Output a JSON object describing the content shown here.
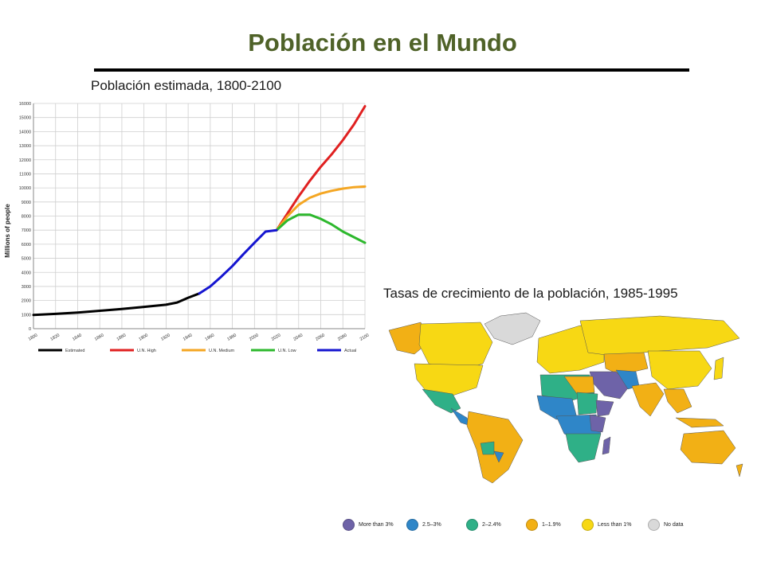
{
  "slide": {
    "title": "Población en el Mundo",
    "chart_caption": "Población estimada, 1800-2100",
    "map_caption": "Tasas de crecimiento de la población, 1985-1995",
    "title_color": "#4f6228"
  },
  "chart_data": {
    "type": "line",
    "title": "",
    "xlabel": "",
    "ylabel": "Millions of people",
    "xlim": [
      1800,
      2100
    ],
    "ylim": [
      0,
      16000
    ],
    "x_ticks": [
      1800,
      1820,
      1840,
      1860,
      1880,
      1900,
      1920,
      1940,
      1960,
      1980,
      2000,
      2020,
      2040,
      2060,
      2080,
      2100
    ],
    "y_ticks": [
      0,
      1000,
      2000,
      3000,
      4000,
      5000,
      6000,
      7000,
      8000,
      9000,
      10000,
      11000,
      12000,
      13000,
      14000,
      15000,
      16000
    ],
    "grid": true,
    "legend_position": "bottom",
    "series": [
      {
        "name": "Estimated",
        "color": "#000000",
        "x": [
          1800,
          1820,
          1840,
          1860,
          1880,
          1900,
          1920,
          1930,
          1940,
          1950
        ],
        "y": [
          980,
          1050,
          1150,
          1270,
          1400,
          1550,
          1700,
          1860,
          2200,
          2500
        ]
      },
      {
        "name": "U.N. High",
        "color": "#e02020",
        "x": [
          2020,
          2030,
          2040,
          2050,
          2060,
          2070,
          2080,
          2090,
          2100
        ],
        "y": [
          7000,
          8200,
          9400,
          10500,
          11500,
          12400,
          13400,
          14500,
          15800
        ]
      },
      {
        "name": "U.N. Medium",
        "color": "#f4a623",
        "x": [
          2020,
          2030,
          2040,
          2050,
          2060,
          2070,
          2080,
          2090,
          2100
        ],
        "y": [
          7000,
          8000,
          8800,
          9300,
          9600,
          9800,
          9950,
          10050,
          10100
        ]
      },
      {
        "name": "U.N. Low",
        "color": "#2db82d",
        "x": [
          2020,
          2030,
          2040,
          2050,
          2060,
          2070,
          2080,
          2090,
          2100
        ],
        "y": [
          7000,
          7700,
          8100,
          8100,
          7800,
          7400,
          6900,
          6500,
          6100
        ]
      },
      {
        "name": "Actual",
        "color": "#1515d0",
        "x": [
          1950,
          1960,
          1970,
          1980,
          1990,
          2000,
          2010,
          2020
        ],
        "y": [
          2500,
          3000,
          3700,
          4450,
          5300,
          6100,
          6900,
          7000
        ]
      }
    ]
  },
  "map_legend": [
    {
      "label": "More than 3%",
      "color": "#6e63a8"
    },
    {
      "label": "2.5–3%",
      "color": "#2f86c8"
    },
    {
      "label": "2–2.4%",
      "color": "#2fb087"
    },
    {
      "label": "1–1.9%",
      "color": "#f2b015"
    },
    {
      "label": "Less than 1%",
      "color": "#f7d814"
    },
    {
      "label": "No data",
      "color": "#d9d9d9"
    }
  ]
}
